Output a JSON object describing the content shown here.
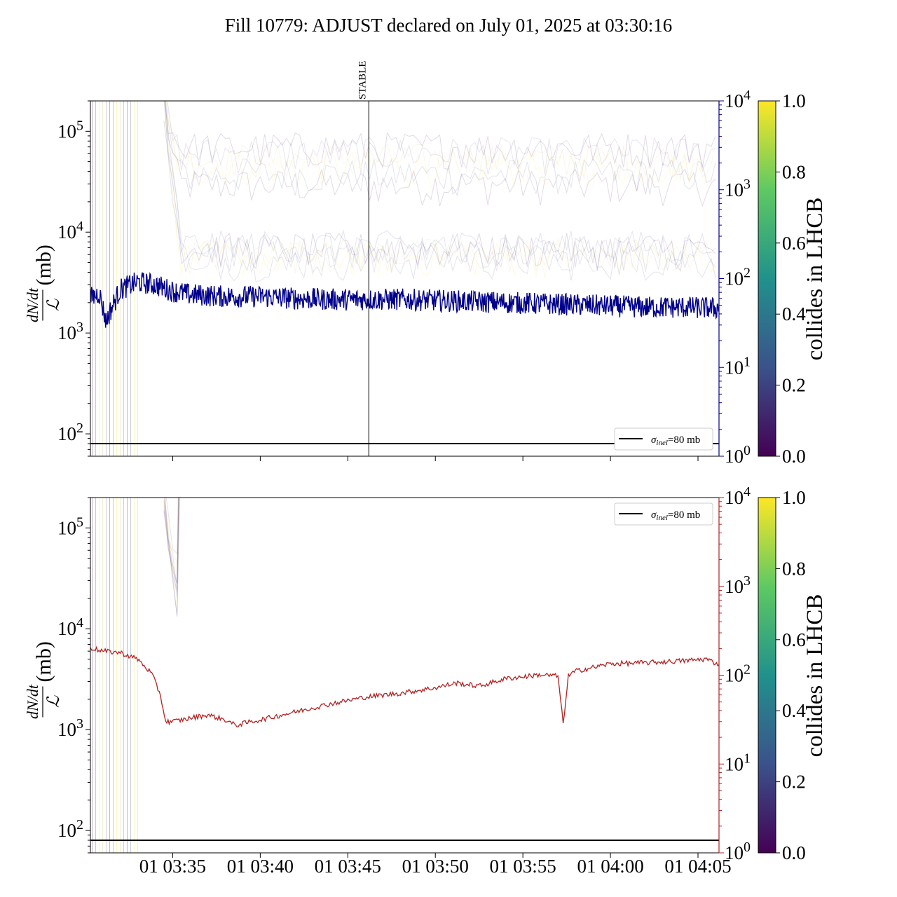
{
  "title": "Fill 10779: ADJUST declared on July 01, 2025 at 03:30:16",
  "colors": {
    "top_series": "#00008b",
    "bottom_series": "#b22222",
    "top_right_axis": "#00008b",
    "bottom_right_axis": "#b22222",
    "reference_line": "#000000",
    "colormap": [
      "#440154",
      "#3b528b",
      "#21918c",
      "#5ec962",
      "#fde725"
    ]
  },
  "chart_data": [
    {
      "type": "line",
      "panel": "top",
      "ylabel_fraction_num": "dN/dt",
      "ylabel_fraction_den": "ℒ",
      "ylabel_unit": "(mb)",
      "y_scale": "log",
      "ylim": [
        60,
        200000
      ],
      "y_ticks": [
        {
          "mant": "10",
          "exp": "2",
          "v": 100
        },
        {
          "mant": "10",
          "exp": "3",
          "v": 1000
        },
        {
          "mant": "10",
          "exp": "4",
          "v": 10000
        },
        {
          "mant": "10",
          "exp": "5",
          "v": 100000
        }
      ],
      "y2_scale": "log",
      "y2lim": [
        1,
        10000
      ],
      "y2_ticks": [
        {
          "mant": "10",
          "exp": "0",
          "v": 1
        },
        {
          "mant": "10",
          "exp": "1",
          "v": 10
        },
        {
          "mant": "10",
          "exp": "2",
          "v": 100
        },
        {
          "mant": "10",
          "exp": "3",
          "v": 1000
        },
        {
          "mant": "10",
          "exp": "4",
          "v": 10000
        }
      ],
      "xlim_minutes": [
        30.3,
        66.2
      ],
      "x_ticks": [
        {
          "v": 35
        },
        {
          "v": 40
        },
        {
          "v": 45
        },
        {
          "v": 50
        },
        {
          "v": 55
        },
        {
          "v": 60
        },
        {
          "v": 65
        }
      ],
      "reference": {
        "value": 80,
        "label_sym": "σ",
        "label_sub": "inel",
        "label_rest": "=80 mb"
      },
      "legend_position": "lower right",
      "annotation": {
        "label": "STABLE",
        "x_minutes": 46.2
      },
      "highlight_series": {
        "x_minutes": [
          30.3,
          30.8,
          31.0,
          31.2,
          31.4,
          32.0,
          33.0,
          34.0,
          35.0,
          36.0,
          38.0,
          40.0,
          42.0,
          44.0,
          46.0,
          48.0,
          50.0,
          52.0,
          54.0,
          56.0,
          58.0,
          60.0,
          62.0,
          64.0,
          66.2
        ],
        "values": [
          2200,
          2500,
          1800,
          1300,
          1600,
          2700,
          3200,
          3000,
          2600,
          2400,
          2300,
          2300,
          2200,
          2150,
          2150,
          2150,
          2100,
          2050,
          2000,
          1950,
          1900,
          1850,
          1800,
          1800,
          1750
        ]
      }
    },
    {
      "type": "line",
      "panel": "bottom",
      "ylabel_fraction_num": "dN/dt",
      "ylabel_fraction_den": "ℒ",
      "ylabel_unit": "(mb)",
      "y_scale": "log",
      "ylim": [
        60,
        200000
      ],
      "y_ticks": [
        {
          "mant": "10",
          "exp": "2",
          "v": 100
        },
        {
          "mant": "10",
          "exp": "3",
          "v": 1000
        },
        {
          "mant": "10",
          "exp": "4",
          "v": 10000
        },
        {
          "mant": "10",
          "exp": "5",
          "v": 100000
        }
      ],
      "y2_scale": "log",
      "y2lim": [
        1,
        10000
      ],
      "y2_ticks": [
        {
          "mant": "10",
          "exp": "0",
          "v": 1
        },
        {
          "mant": "10",
          "exp": "1",
          "v": 10
        },
        {
          "mant": "10",
          "exp": "2",
          "v": 100
        },
        {
          "mant": "10",
          "exp": "3",
          "v": 1000
        },
        {
          "mant": "10",
          "exp": "4",
          "v": 10000
        }
      ],
      "xlim_minutes": [
        30.3,
        66.2
      ],
      "x_ticks": [
        {
          "v": 35,
          "label": "01 03:35"
        },
        {
          "v": 40,
          "label": "01 03:40"
        },
        {
          "v": 45,
          "label": "01 03:45"
        },
        {
          "v": 50,
          "label": "01 03:50"
        },
        {
          "v": 55,
          "label": "01 03:55"
        },
        {
          "v": 60,
          "label": "01 04:00"
        },
        {
          "v": 65,
          "label": "01 04:05"
        }
      ],
      "reference": {
        "value": 80,
        "label_sym": "σ",
        "label_sub": "inel",
        "label_rest": "=80 mb"
      },
      "legend_position": "upper right",
      "highlight_series": {
        "x_minutes": [
          30.3,
          31.0,
          32.0,
          33.0,
          33.8,
          34.3,
          34.6,
          35.0,
          36.0,
          37.0,
          38.0,
          38.6,
          39.0,
          40.0,
          42.0,
          44.0,
          46.0,
          48.0,
          50.0,
          51.2,
          52.5,
          54.0,
          56.0,
          57.0,
          57.3,
          57.6,
          58.0,
          60.0,
          62.0,
          64.0,
          65.5,
          66.2
        ],
        "values": [
          6500,
          6000,
          5800,
          5000,
          3600,
          2200,
          1200,
          1200,
          1300,
          1400,
          1250,
          1100,
          1150,
          1250,
          1500,
          1800,
          2100,
          2300,
          2600,
          2900,
          2700,
          3200,
          3500,
          3400,
          1150,
          3400,
          3800,
          4500,
          4600,
          4800,
          5000,
          4400
        ]
      }
    }
  ],
  "colorbar": {
    "label": "collides in LHCB",
    "ticks": [
      "0.0",
      "0.2",
      "0.4",
      "0.6",
      "0.8",
      "1.0"
    ]
  }
}
